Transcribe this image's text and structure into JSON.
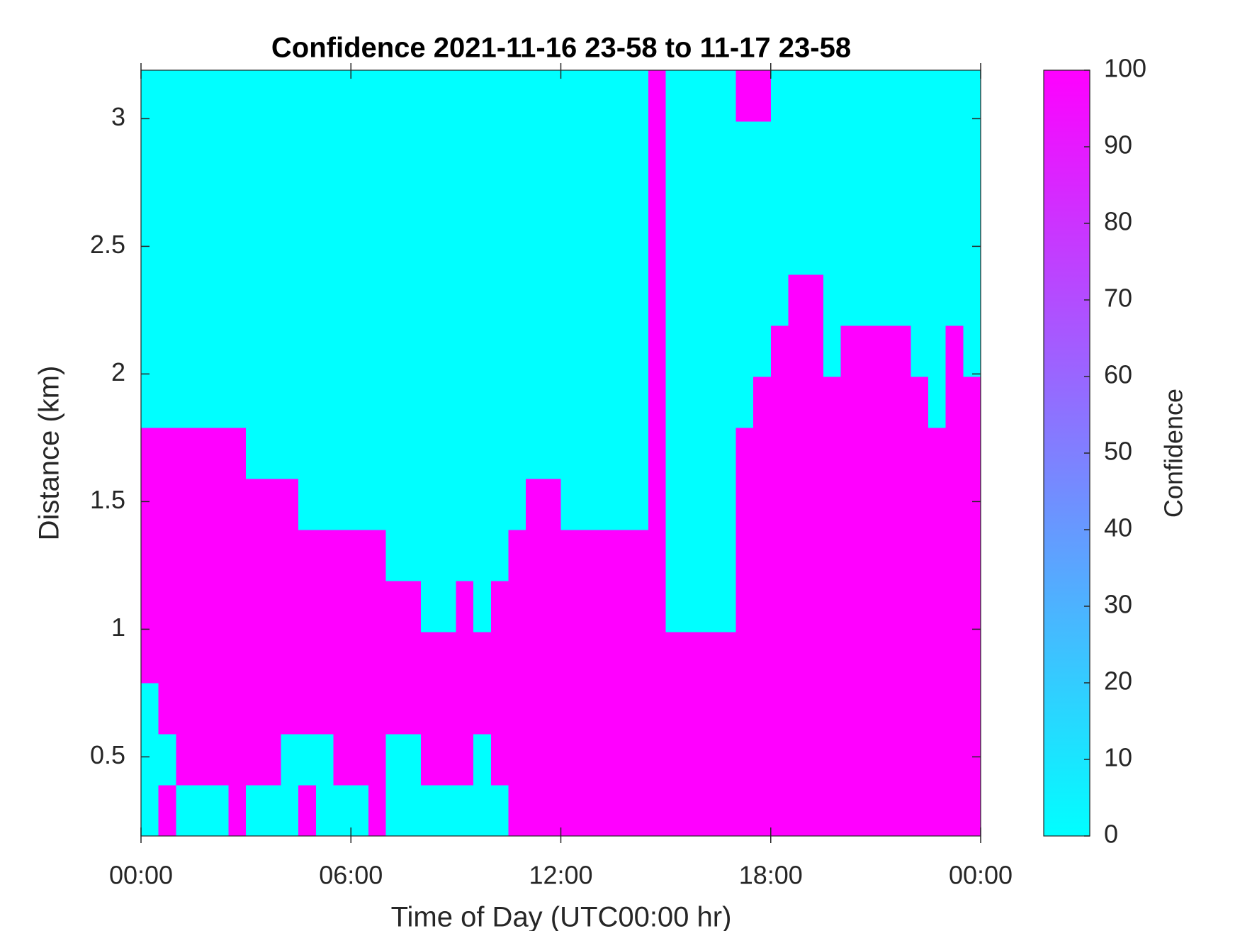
{
  "chart_data": {
    "type": "heatmap",
    "title": "Confidence 2021-11-16 23-58 to 11-17 23-58",
    "x_label": "Time of Day (UTC00:00 hr)",
    "y_label": "Distance (km)",
    "colorbar_label": "Confidence",
    "colormap": [
      "#00ffff",
      "#ff00ff"
    ],
    "x": [
      0,
      0.5,
      1,
      1.5,
      2,
      2.5,
      3,
      3.5,
      4,
      4.5,
      5,
      5.5,
      6,
      6.5,
      7,
      7.5,
      8,
      8.5,
      9,
      9.5,
      10,
      10.5,
      11,
      11.5,
      12,
      12.5,
      13,
      13.5,
      14,
      14.5,
      15,
      15.5,
      16,
      16.5,
      17,
      17.5,
      18,
      18.5,
      19,
      19.5,
      20,
      20.5,
      21,
      21.5,
      22,
      22.5,
      23,
      23.5,
      24
    ],
    "y": [
      0.19,
      0.39,
      0.59,
      0.79,
      0.99,
      1.19,
      1.39,
      1.59,
      1.79,
      1.99,
      2.19,
      2.39,
      2.59,
      2.79,
      2.99,
      3.19
    ],
    "z": [
      [
        0,
        100,
        0,
        0,
        0,
        100,
        0,
        0,
        0,
        100,
        0,
        0,
        0,
        100,
        0,
        0,
        0,
        0,
        0,
        0,
        0,
        100,
        100,
        100,
        100,
        100,
        100,
        100,
        100,
        100,
        100,
        100,
        100,
        100,
        100,
        100,
        100,
        100,
        100,
        100,
        100,
        100,
        100,
        100,
        100,
        100,
        100,
        100
      ],
      [
        0,
        0,
        100,
        100,
        100,
        100,
        100,
        100,
        0,
        0,
        0,
        100,
        100,
        100,
        0,
        0,
        100,
        100,
        100,
        0,
        100,
        100,
        100,
        100,
        100,
        100,
        100,
        100,
        100,
        100,
        100,
        100,
        100,
        100,
        100,
        100,
        100,
        100,
        100,
        100,
        100,
        100,
        100,
        100,
        100,
        100,
        100,
        100
      ],
      [
        0,
        100,
        100,
        100,
        100,
        100,
        100,
        100,
        100,
        100,
        100,
        100,
        100,
        100,
        100,
        100,
        100,
        100,
        100,
        100,
        100,
        100,
        100,
        100,
        100,
        100,
        100,
        100,
        100,
        100,
        100,
        100,
        100,
        100,
        100,
        100,
        100,
        100,
        100,
        100,
        100,
        100,
        100,
        100,
        100,
        100,
        100,
        100
      ],
      [
        100,
        100,
        100,
        100,
        100,
        100,
        100,
        100,
        100,
        100,
        100,
        100,
        100,
        100,
        100,
        100,
        100,
        100,
        100,
        100,
        100,
        100,
        100,
        100,
        100,
        100,
        100,
        100,
        100,
        100,
        100,
        100,
        100,
        100,
        100,
        100,
        100,
        100,
        100,
        100,
        100,
        100,
        100,
        100,
        100,
        100,
        100,
        100
      ],
      [
        100,
        100,
        100,
        100,
        100,
        100,
        100,
        100,
        100,
        100,
        100,
        100,
        100,
        100,
        100,
        100,
        0,
        0,
        100,
        0,
        100,
        100,
        100,
        100,
        100,
        100,
        100,
        100,
        100,
        100,
        0,
        0,
        0,
        0,
        100,
        100,
        100,
        100,
        100,
        100,
        100,
        100,
        100,
        100,
        100,
        100,
        100,
        100
      ],
      [
        100,
        100,
        100,
        100,
        100,
        100,
        100,
        100,
        100,
        100,
        100,
        100,
        100,
        100,
        0,
        0,
        0,
        0,
        0,
        0,
        0,
        100,
        100,
        100,
        100,
        100,
        100,
        100,
        100,
        100,
        0,
        0,
        0,
        0,
        100,
        100,
        100,
        100,
        100,
        100,
        100,
        100,
        100,
        100,
        100,
        100,
        100,
        100
      ],
      [
        100,
        100,
        100,
        100,
        100,
        100,
        100,
        100,
        100,
        0,
        0,
        0,
        0,
        0,
        0,
        0,
        0,
        0,
        0,
        0,
        0,
        0,
        100,
        100,
        0,
        0,
        0,
        0,
        0,
        100,
        0,
        0,
        0,
        0,
        100,
        100,
        100,
        100,
        100,
        100,
        100,
        100,
        100,
        100,
        100,
        100,
        100,
        100
      ],
      [
        100,
        100,
        100,
        100,
        100,
        100,
        0,
        0,
        0,
        0,
        0,
        0,
        0,
        0,
        0,
        0,
        0,
        0,
        0,
        0,
        0,
        0,
        0,
        0,
        0,
        0,
        0,
        0,
        0,
        100,
        0,
        0,
        0,
        0,
        100,
        100,
        100,
        100,
        100,
        100,
        100,
        100,
        100,
        100,
        100,
        100,
        100,
        100
      ],
      [
        0,
        0,
        0,
        0,
        0,
        0,
        0,
        0,
        0,
        0,
        0,
        0,
        0,
        0,
        0,
        0,
        0,
        0,
        0,
        0,
        0,
        0,
        0,
        0,
        0,
        0,
        0,
        0,
        0,
        100,
        0,
        0,
        0,
        0,
        0,
        100,
        100,
        100,
        100,
        100,
        100,
        100,
        100,
        100,
        100,
        0,
        100,
        100
      ],
      [
        0,
        0,
        0,
        0,
        0,
        0,
        0,
        0,
        0,
        0,
        0,
        0,
        0,
        0,
        0,
        0,
        0,
        0,
        0,
        0,
        0,
        0,
        0,
        0,
        0,
        0,
        0,
        0,
        0,
        100,
        0,
        0,
        0,
        0,
        0,
        0,
        100,
        100,
        100,
        0,
        100,
        100,
        100,
        100,
        0,
        0,
        100,
        0
      ],
      [
        0,
        0,
        0,
        0,
        0,
        0,
        0,
        0,
        0,
        0,
        0,
        0,
        0,
        0,
        0,
        0,
        0,
        0,
        0,
        0,
        0,
        0,
        0,
        0,
        0,
        0,
        0,
        0,
        0,
        100,
        0,
        0,
        0,
        0,
        0,
        0,
        0,
        100,
        100,
        0,
        0,
        0,
        0,
        0,
        0,
        0,
        0,
        0
      ],
      [
        0,
        0,
        0,
        0,
        0,
        0,
        0,
        0,
        0,
        0,
        0,
        0,
        0,
        0,
        0,
        0,
        0,
        0,
        0,
        0,
        0,
        0,
        0,
        0,
        0,
        0,
        0,
        0,
        0,
        100,
        0,
        0,
        0,
        0,
        0,
        0,
        0,
        0,
        0,
        0,
        0,
        0,
        0,
        0,
        0,
        0,
        0,
        0
      ],
      [
        0,
        0,
        0,
        0,
        0,
        0,
        0,
        0,
        0,
        0,
        0,
        0,
        0,
        0,
        0,
        0,
        0,
        0,
        0,
        0,
        0,
        0,
        0,
        0,
        0,
        0,
        0,
        0,
        0,
        100,
        0,
        0,
        0,
        0,
        0,
        0,
        0,
        0,
        0,
        0,
        0,
        0,
        0,
        0,
        0,
        0,
        0,
        0
      ],
      [
        0,
        0,
        0,
        0,
        0,
        0,
        0,
        0,
        0,
        0,
        0,
        0,
        0,
        0,
        0,
        0,
        0,
        0,
        0,
        0,
        0,
        0,
        0,
        0,
        0,
        0,
        0,
        0,
        0,
        100,
        0,
        0,
        0,
        0,
        0,
        0,
        0,
        0,
        0,
        0,
        0,
        0,
        0,
        0,
        0,
        0,
        0,
        0
      ],
      [
        0,
        0,
        0,
        0,
        0,
        0,
        0,
        0,
        0,
        0,
        0,
        0,
        0,
        0,
        0,
        0,
        0,
        0,
        0,
        0,
        0,
        0,
        0,
        0,
        0,
        0,
        0,
        0,
        0,
        100,
        0,
        0,
        0,
        0,
        100,
        100,
        0,
        0,
        0,
        0,
        0,
        0,
        0,
        0,
        0,
        0,
        0,
        0
      ]
    ],
    "xlim": [
      0,
      24
    ],
    "ylim": [
      0.19,
      3.19
    ],
    "xticks": [
      {
        "value": 0,
        "label": "00:00"
      },
      {
        "value": 6,
        "label": "06:00"
      },
      {
        "value": 12,
        "label": "12:00"
      },
      {
        "value": 18,
        "label": "18:00"
      },
      {
        "value": 24,
        "label": "00:00"
      }
    ],
    "yticks": [
      0.5,
      1,
      1.5,
      2,
      2.5,
      3
    ],
    "clim": [
      0,
      100
    ],
    "cticks": [
      0,
      10,
      20,
      30,
      40,
      50,
      60,
      70,
      80,
      90,
      100
    ]
  }
}
